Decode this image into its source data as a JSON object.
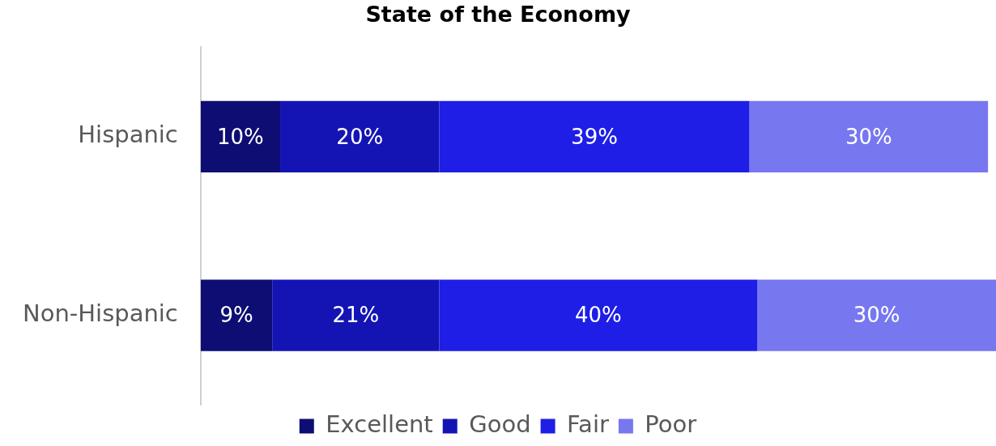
{
  "chart_data": {
    "type": "bar",
    "orientation": "horizontal",
    "stacked": true,
    "title": "State of the Economy",
    "categories": [
      "Hispanic",
      "Non-Hispanic"
    ],
    "series": [
      {
        "name": "Excellent",
        "color": "#0d0d73",
        "values": [
          10,
          9
        ],
        "value_labels": [
          "10%",
          "9%"
        ]
      },
      {
        "name": "Good",
        "color": "#1414b4",
        "values": [
          20,
          21
        ],
        "value_labels": [
          "20%",
          "21%"
        ]
      },
      {
        "name": "Fair",
        "color": "#1e1ee6",
        "values": [
          39,
          40
        ],
        "value_labels": [
          "39%",
          "40%"
        ]
      },
      {
        "name": "Poor",
        "color": "#7777f0",
        "values": [
          30,
          30
        ],
        "value_labels": [
          "30%",
          "30%"
        ]
      }
    ],
    "tick_labels": "y",
    "legend": "bottom"
  }
}
